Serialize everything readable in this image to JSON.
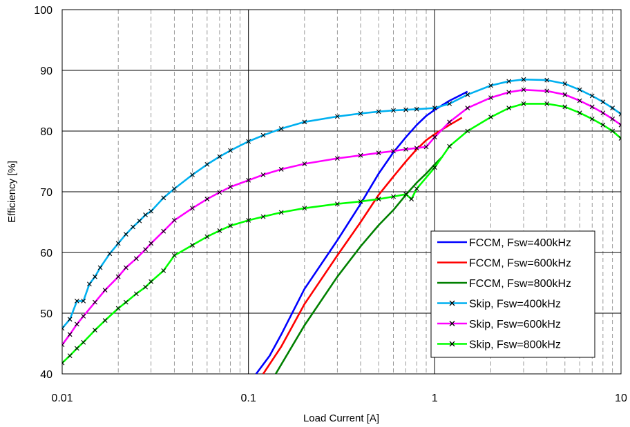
{
  "chart_data": {
    "type": "line",
    "title": "",
    "xlabel": "Load Current [A]",
    "ylabel": "Efficiency [%]",
    "xscale": "log",
    "xlim": [
      0.01,
      10
    ],
    "ylim": [
      40,
      100
    ],
    "x_ticks": [
      0.01,
      0.1,
      1,
      10
    ],
    "x_tick_labels": [
      "0.01",
      "0.1",
      "1",
      "10"
    ],
    "y_ticks": [
      40,
      50,
      60,
      70,
      80,
      90,
      100
    ],
    "y_tick_labels": [
      "40",
      "50",
      "60",
      "70",
      "80",
      "90",
      "100"
    ],
    "grid": true,
    "legend_position": "lower-right",
    "series": [
      {
        "name": "FCCM, Fsw=400kHz",
        "color": "#0000FF",
        "marker": "none",
        "points": [
          [
            0.11,
            40
          ],
          [
            0.13,
            43
          ],
          [
            0.15,
            46.5
          ],
          [
            0.2,
            54
          ],
          [
            0.3,
            62
          ],
          [
            0.4,
            68
          ],
          [
            0.5,
            73
          ],
          [
            0.6,
            76.5
          ],
          [
            0.7,
            79
          ],
          [
            0.8,
            81
          ],
          [
            0.9,
            82.5
          ],
          [
            1.0,
            83.5
          ],
          [
            1.2,
            85
          ],
          [
            1.5,
            86.5
          ]
        ]
      },
      {
        "name": "FCCM, Fsw=600kHz",
        "color": "#FF0000",
        "marker": "none",
        "points": [
          [
            0.12,
            40
          ],
          [
            0.15,
            44.5
          ],
          [
            0.2,
            51.5
          ],
          [
            0.3,
            59.5
          ],
          [
            0.4,
            65
          ],
          [
            0.5,
            69.5
          ],
          [
            0.6,
            72.5
          ],
          [
            0.7,
            75
          ],
          [
            0.8,
            77
          ],
          [
            0.9,
            78.5
          ],
          [
            1.0,
            79.5
          ],
          [
            1.2,
            81
          ],
          [
            1.4,
            82.2
          ]
        ]
      },
      {
        "name": "FCCM, Fsw=800kHz",
        "color": "#008000",
        "marker": "none",
        "points": [
          [
            0.14,
            40
          ],
          [
            0.2,
            48
          ],
          [
            0.3,
            56
          ],
          [
            0.4,
            61
          ],
          [
            0.5,
            64.5
          ],
          [
            0.6,
            67
          ],
          [
            0.7,
            69.5
          ],
          [
            0.8,
            71.5
          ],
          [
            0.9,
            73
          ],
          [
            1.0,
            74.5
          ],
          [
            1.1,
            75.8
          ]
        ]
      },
      {
        "name": "Skip, Fsw=400kHz",
        "color": "#00B0F0",
        "marker": "x",
        "points": [
          [
            0.01,
            47.5
          ],
          [
            0.011,
            49
          ],
          [
            0.012,
            52
          ],
          [
            0.013,
            52
          ],
          [
            0.014,
            54.8
          ],
          [
            0.015,
            56
          ],
          [
            0.016,
            57.5
          ],
          [
            0.018,
            59.8
          ],
          [
            0.02,
            61.5
          ],
          [
            0.022,
            63
          ],
          [
            0.024,
            64.2
          ],
          [
            0.026,
            65.2
          ],
          [
            0.028,
            66.2
          ],
          [
            0.03,
            66.8
          ],
          [
            0.035,
            69
          ],
          [
            0.04,
            70.5
          ],
          [
            0.05,
            72.8
          ],
          [
            0.06,
            74.5
          ],
          [
            0.07,
            75.8
          ],
          [
            0.08,
            76.8
          ],
          [
            0.1,
            78.3
          ],
          [
            0.12,
            79.3
          ],
          [
            0.15,
            80.4
          ],
          [
            0.2,
            81.5
          ],
          [
            0.3,
            82.4
          ],
          [
            0.4,
            82.9
          ],
          [
            0.5,
            83.2
          ],
          [
            0.6,
            83.4
          ],
          [
            0.7,
            83.5
          ],
          [
            0.8,
            83.6
          ],
          [
            1.0,
            83.8
          ],
          [
            1.2,
            84.5
          ],
          [
            1.5,
            86
          ],
          [
            2.0,
            87.5
          ],
          [
            2.5,
            88.2
          ],
          [
            3.0,
            88.5
          ],
          [
            4.0,
            88.4
          ],
          [
            5.0,
            87.8
          ],
          [
            6.0,
            86.8
          ],
          [
            7.0,
            85.8
          ],
          [
            8.0,
            84.8
          ],
          [
            9.0,
            83.8
          ],
          [
            10.0,
            82.8
          ]
        ]
      },
      {
        "name": "Skip, Fsw=600kHz",
        "color": "#FF00FF",
        "marker": "x",
        "points": [
          [
            0.01,
            44.8
          ],
          [
            0.011,
            46.5
          ],
          [
            0.012,
            48.2
          ],
          [
            0.013,
            49.5
          ],
          [
            0.015,
            51.8
          ],
          [
            0.017,
            53.8
          ],
          [
            0.02,
            56
          ],
          [
            0.022,
            57.5
          ],
          [
            0.025,
            59
          ],
          [
            0.028,
            60.5
          ],
          [
            0.03,
            61.5
          ],
          [
            0.035,
            63.5
          ],
          [
            0.04,
            65.3
          ],
          [
            0.05,
            67.3
          ],
          [
            0.06,
            68.8
          ],
          [
            0.07,
            69.9
          ],
          [
            0.08,
            70.8
          ],
          [
            0.1,
            71.9
          ],
          [
            0.12,
            72.8
          ],
          [
            0.15,
            73.7
          ],
          [
            0.2,
            74.6
          ],
          [
            0.3,
            75.5
          ],
          [
            0.4,
            76
          ],
          [
            0.5,
            76.4
          ],
          [
            0.6,
            76.7
          ],
          [
            0.7,
            77
          ],
          [
            0.8,
            77.2
          ],
          [
            0.9,
            77.4
          ],
          [
            1.0,
            79
          ],
          [
            1.2,
            81.5
          ],
          [
            1.5,
            83.8
          ],
          [
            2.0,
            85.5
          ],
          [
            2.5,
            86.4
          ],
          [
            3.0,
            86.8
          ],
          [
            4.0,
            86.6
          ],
          [
            5.0,
            86
          ],
          [
            6.0,
            85
          ],
          [
            7.0,
            84
          ],
          [
            8.0,
            83
          ],
          [
            9.0,
            82
          ],
          [
            10.0,
            81
          ]
        ]
      },
      {
        "name": "Skip, Fsw=800kHz",
        "color": "#00FF00",
        "marker": "x",
        "points": [
          [
            0.01,
            41.8
          ],
          [
            0.011,
            43
          ],
          [
            0.012,
            44.2
          ],
          [
            0.013,
            45.2
          ],
          [
            0.015,
            47.2
          ],
          [
            0.017,
            48.8
          ],
          [
            0.02,
            50.8
          ],
          [
            0.022,
            51.8
          ],
          [
            0.025,
            53.2
          ],
          [
            0.028,
            54.3
          ],
          [
            0.03,
            55.2
          ],
          [
            0.035,
            57
          ],
          [
            0.04,
            59.5
          ],
          [
            0.05,
            61.2
          ],
          [
            0.06,
            62.6
          ],
          [
            0.07,
            63.6
          ],
          [
            0.08,
            64.4
          ],
          [
            0.1,
            65.3
          ],
          [
            0.12,
            65.9
          ],
          [
            0.15,
            66.6
          ],
          [
            0.2,
            67.3
          ],
          [
            0.3,
            68
          ],
          [
            0.4,
            68.4
          ],
          [
            0.5,
            68.8
          ],
          [
            0.6,
            69.2
          ],
          [
            0.7,
            69.6
          ],
          [
            0.75,
            68.8
          ],
          [
            0.8,
            70.5
          ],
          [
            1.0,
            74
          ],
          [
            1.2,
            77.5
          ],
          [
            1.5,
            80
          ],
          [
            2.0,
            82.3
          ],
          [
            2.5,
            83.8
          ],
          [
            3.0,
            84.5
          ],
          [
            4.0,
            84.5
          ],
          [
            5.0,
            84
          ],
          [
            6.0,
            83
          ],
          [
            7.0,
            82
          ],
          [
            8.0,
            81
          ],
          [
            9.0,
            80
          ],
          [
            10.0,
            78.8
          ]
        ]
      }
    ]
  }
}
